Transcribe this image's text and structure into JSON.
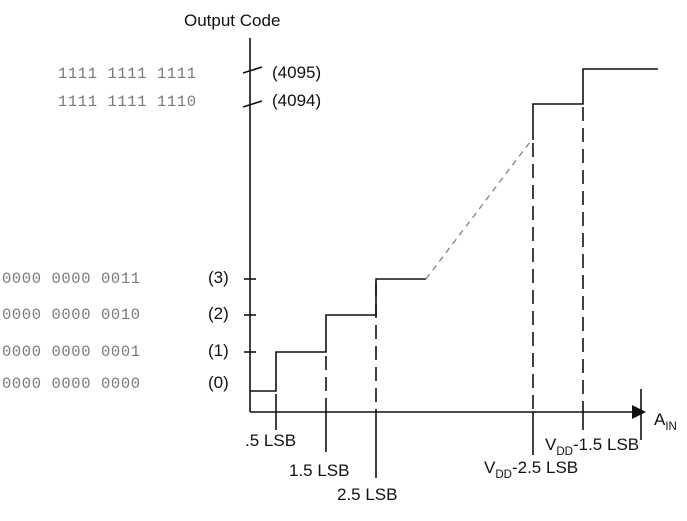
{
  "axis": {
    "y_label": "Output Code",
    "x_label_main": "A",
    "x_label_sub": "IN"
  },
  "codes": [
    {
      "binary": "1111 1111 1111",
      "decimal": "(4095)"
    },
    {
      "binary": "1111 1111 1110",
      "decimal": "(4094)"
    },
    {
      "binary": "0000 0000 0011",
      "decimal": "(3)"
    },
    {
      "binary": "0000 0000 0010",
      "decimal": "(2)"
    },
    {
      "binary": "0000 0000 0001",
      "decimal": "(1)"
    },
    {
      "binary": "0000 0000 0000",
      "decimal": "(0)"
    }
  ],
  "transitions": {
    "t05": ".5 LSB",
    "t15": "1.5 LSB",
    "t25": "2.5 LSB",
    "vdd25_pre": "V",
    "vdd25_sub": "DD",
    "vdd25_post": "-2.5 LSB",
    "vdd15_pre": "V",
    "vdd15_sub": "DD",
    "vdd15_post": "-1.5 LSB"
  }
}
